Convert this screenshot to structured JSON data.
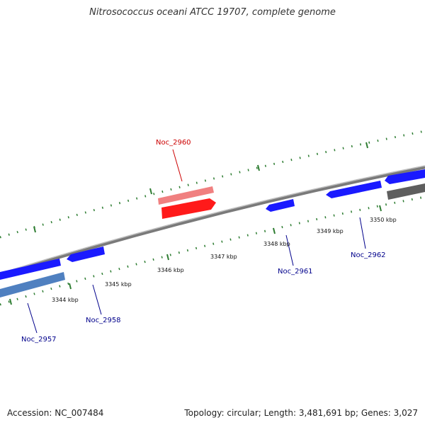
{
  "title": "Nitrosococcus oceani ATCC 19707, complete genome",
  "footer": {
    "accession": "Accession: NC_007484",
    "summary": "Topology: circular; Length: 3,481,691 bp; Genes: 3,027"
  },
  "colors": {
    "forward_gene": "#1a1aff",
    "forward_gene_light": "#4f6fbf",
    "reverse_gene": "#ff2020",
    "reverse_gene_light": "#f08080",
    "other_gene": "#666666",
    "backbone": "#808080",
    "tick": "#2e7d32",
    "label_blue": "#00008b",
    "label_red": "#cc0000"
  },
  "scale_labels": [
    "3344 kbp",
    "3345 kbp",
    "3346 kbp",
    "3347 kbp",
    "3348 kbp",
    "3349 kbp",
    "3350 kbp"
  ],
  "gene_labels": {
    "noc_2957": "Noc_2957",
    "noc_2958": "Noc_2958",
    "noc_2960": "Noc_2960",
    "noc_2961": "Noc_2961",
    "noc_2962": "Noc_2962"
  }
}
